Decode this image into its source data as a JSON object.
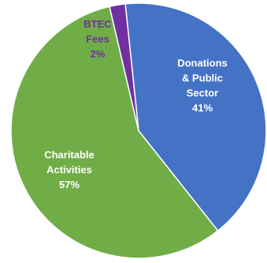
{
  "chart_data": {
    "type": "pie",
    "slices": [
      {
        "label_lines": [
          "Donations",
          "& Public",
          "Sector"
        ],
        "percent_label": "41%",
        "value": 41,
        "color": "#4472C4",
        "label_color": "#ffffff"
      },
      {
        "label_lines": [
          "Charitable",
          "Activities"
        ],
        "percent_label": "57%",
        "value": 57,
        "color": "#70AD47",
        "label_color": "#ffffff"
      },
      {
        "label_lines": [
          "BTEC",
          "Fees"
        ],
        "percent_label": "2%",
        "value": 2,
        "color": "#7030A0",
        "label_color": "#7030A0"
      }
    ]
  }
}
